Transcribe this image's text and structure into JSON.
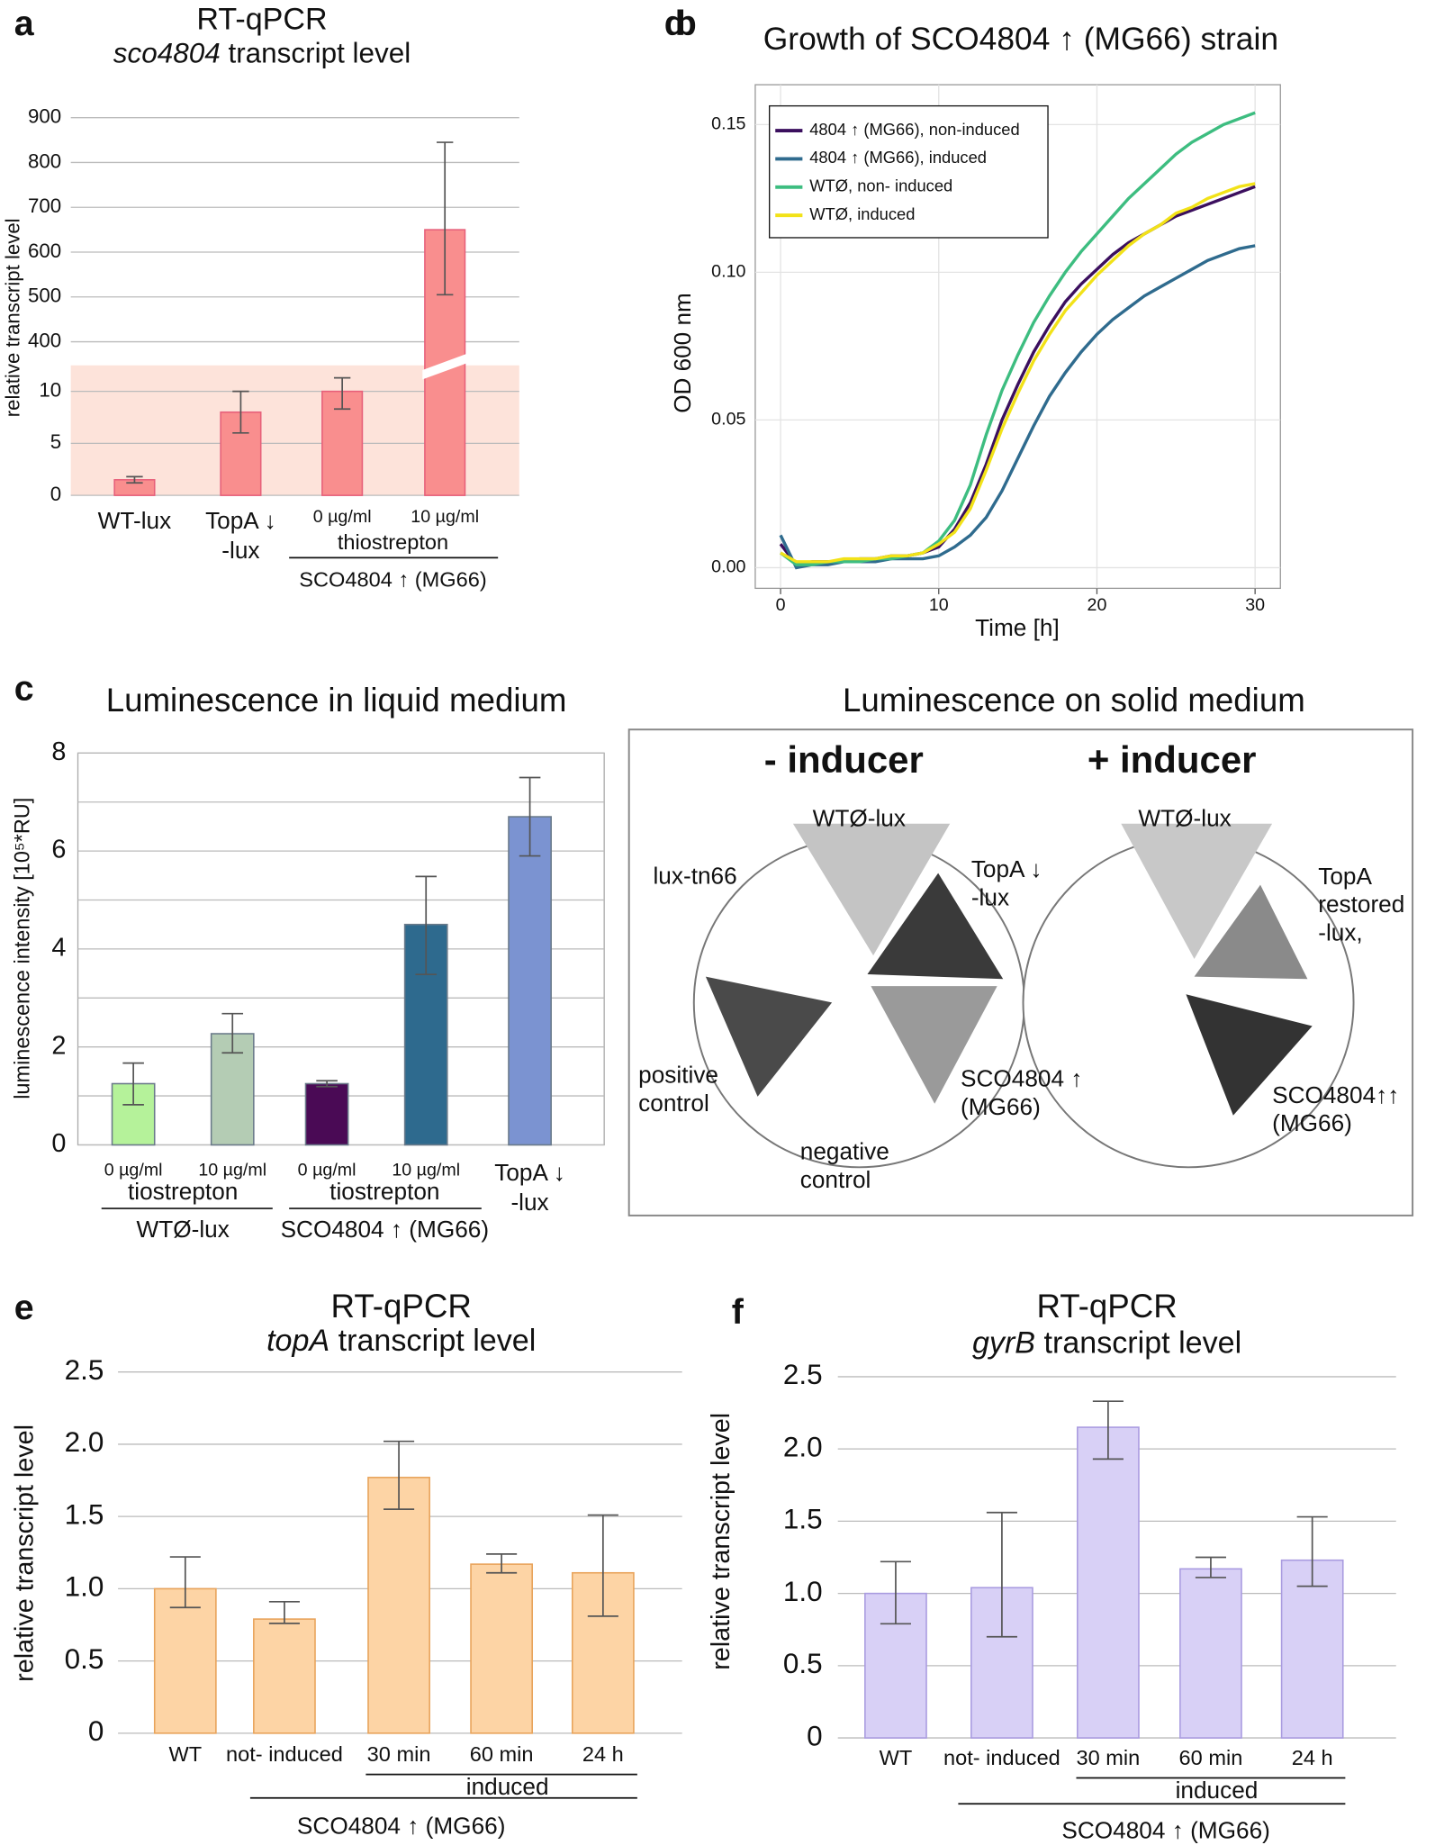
{
  "chart_data": [
    {
      "panel": "a",
      "type": "bar",
      "title": "RT-qPCR",
      "subtitle": "sco4804 transcript level",
      "y_label": "relative transcript level",
      "categories": [
        "WT-lux",
        "TopA ↓\n-lux",
        "0 µg/ml",
        "10 µg/ml"
      ],
      "group_labels": [
        "thiostrepton",
        "SCO4804 ↑ (MG66)"
      ],
      "values": [
        1.5,
        8,
        10,
        650
      ],
      "error_bars": [
        [
          1.2,
          1.8
        ],
        [
          6,
          10
        ],
        [
          8.3,
          11.3
        ],
        [
          505,
          845
        ]
      ],
      "color": "#f98e8e",
      "edge_color": "#e7607a",
      "shade_color": "#fde3da",
      "ylim": [
        0,
        900
      ],
      "y_break": [
        12.5,
        350
      ],
      "yticks": [
        0,
        5,
        10,
        400,
        500,
        600,
        700,
        800,
        900
      ],
      "grid": true
    },
    {
      "panel": "b",
      "type": "line",
      "title": "Growth of SCO4804 ↑ (MG66) strain",
      "x_label": "Time [h]",
      "y_label": "OD 600 nm",
      "x": [
        0,
        1,
        2,
        3,
        4,
        5,
        6,
        7,
        8,
        9,
        10,
        11,
        12,
        13,
        14,
        15,
        16,
        17,
        18,
        19,
        20,
        21,
        22,
        23,
        24,
        25,
        26,
        27,
        28,
        29,
        30
      ],
      "series": [
        {
          "name": "4804 ↑ (MG66), non-induced",
          "color": "#3b0f5e",
          "values": [
            0.008,
            0.001,
            0.002,
            0.002,
            0.002,
            0.003,
            0.003,
            0.004,
            0.004,
            0.005,
            0.007,
            0.013,
            0.022,
            0.035,
            0.05,
            0.062,
            0.073,
            0.082,
            0.09,
            0.096,
            0.101,
            0.106,
            0.11,
            0.113,
            0.116,
            0.119,
            0.121,
            0.123,
            0.125,
            0.127,
            0.129
          ]
        },
        {
          "name": "4804 ↑ (MG66), induced",
          "color": "#2f6b8e",
          "values": [
            0.011,
            0.0,
            0.001,
            0.001,
            0.002,
            0.002,
            0.002,
            0.003,
            0.003,
            0.003,
            0.004,
            0.007,
            0.011,
            0.017,
            0.026,
            0.037,
            0.048,
            0.058,
            0.066,
            0.073,
            0.079,
            0.084,
            0.088,
            0.092,
            0.095,
            0.098,
            0.101,
            0.104,
            0.106,
            0.108,
            0.109
          ]
        },
        {
          "name": "WTØ, non- induced",
          "color": "#3dbd80",
          "values": [
            0.005,
            0.001,
            0.001,
            0.002,
            0.002,
            0.002,
            0.003,
            0.003,
            0.004,
            0.005,
            0.009,
            0.016,
            0.028,
            0.045,
            0.06,
            0.072,
            0.083,
            0.092,
            0.1,
            0.107,
            0.113,
            0.119,
            0.125,
            0.13,
            0.135,
            0.14,
            0.144,
            0.147,
            0.15,
            0.152,
            0.154
          ]
        },
        {
          "name": "WTØ, induced",
          "color": "#f2e218",
          "values": [
            0.005,
            0.002,
            0.002,
            0.002,
            0.003,
            0.003,
            0.003,
            0.004,
            0.004,
            0.005,
            0.008,
            0.012,
            0.02,
            0.033,
            0.047,
            0.059,
            0.07,
            0.079,
            0.087,
            0.093,
            0.099,
            0.104,
            0.109,
            0.113,
            0.116,
            0.12,
            0.122,
            0.125,
            0.127,
            0.129,
            0.13
          ]
        }
      ],
      "xlim": [
        -1.6,
        31.6
      ],
      "xticks": [
        0,
        10,
        20,
        30
      ],
      "ylim": [
        -0.007,
        0.1635
      ],
      "yticks": [
        {
          "value": 0,
          "label": "0.00"
        },
        {
          "value": 0.05,
          "label": "0.05"
        },
        {
          "value": 0.1,
          "label": "0.10"
        },
        {
          "value": 0.15,
          "label": "0.15"
        }
      ],
      "grid": true,
      "legend": "upper left"
    },
    {
      "panel": "c",
      "type": "bar",
      "title": "Luminescence in liquid medium",
      "y_label": "luminescence intensity [10⁵*RU]",
      "categories": [
        "0 µg/ml",
        "10 µg/ml",
        "0 µg/ml",
        "10 µg/ml",
        "TopA ↓\n-lux"
      ],
      "group_labels": [
        "tiostrepton",
        "WTØ-lux",
        "tiostrepton",
        "SCO4804 ↑ (MG66)"
      ],
      "values": [
        1.25,
        2.27,
        1.25,
        4.5,
        6.7
      ],
      "error_bars": [
        [
          0.82,
          1.67
        ],
        [
          1.88,
          2.68
        ],
        [
          1.19,
          1.31
        ],
        [
          3.48,
          5.48
        ],
        [
          5.9,
          7.5
        ]
      ],
      "colors": [
        "#b5f29a",
        "#b4ccb4",
        "#4a0a55",
        "#2e6a8e",
        "#7b93d1"
      ],
      "edge_color": "#6a7a8a",
      "ylim": [
        0,
        8
      ],
      "yticks": [
        0,
        2,
        4,
        6,
        8
      ],
      "minor_yticks": [
        1,
        3,
        5,
        7
      ],
      "grid": true
    },
    {
      "panel": "e",
      "type": "bar",
      "title": "RT-qPCR",
      "subtitle": "topA transcript level",
      "y_label": "relative transcript level",
      "categories": [
        "WT",
        "not- induced",
        "30 min",
        "60 min",
        "24 h"
      ],
      "group_labels": [
        "induced",
        "SCO4804 ↑ (MG66)"
      ],
      "values": [
        1.0,
        0.79,
        1.77,
        1.17,
        1.11
      ],
      "error_bars": [
        [
          0.87,
          1.22
        ],
        [
          0.76,
          0.91
        ],
        [
          1.55,
          2.02
        ],
        [
          1.11,
          1.24
        ],
        [
          0.81,
          1.51
        ]
      ],
      "color": "#fdd4a5",
      "edge_color": "#e8a35a",
      "ylim": [
        0,
        2.5
      ],
      "yticks": [
        0,
        0.5,
        {
          "value": 1,
          "label": "1.0"
        },
        1.5,
        {
          "value": 2,
          "label": "2.0"
        },
        2.5
      ],
      "grid": true
    },
    {
      "panel": "f",
      "type": "bar",
      "title": "RT-qPCR",
      "subtitle": "gyrB transcript level",
      "y_label": "relative transcript level",
      "categories": [
        "WT",
        "not- induced",
        "30 min",
        "60 min",
        "24 h"
      ],
      "group_labels": [
        "induced",
        "SCO4804 ↑ (MG66)"
      ],
      "values": [
        1.0,
        1.04,
        2.15,
        1.17,
        1.23
      ],
      "error_bars": [
        [
          0.79,
          1.22
        ],
        [
          0.7,
          1.56
        ],
        [
          1.93,
          2.33
        ],
        [
          1.11,
          1.25
        ],
        [
          1.05,
          1.53
        ]
      ],
      "color": "#d8d0f6",
      "edge_color": "#a99be0",
      "ylim": [
        0,
        2.5
      ],
      "yticks": [
        0,
        0.5,
        {
          "value": 1,
          "label": "1.0"
        },
        1.5,
        {
          "value": 2,
          "label": "2.0"
        },
        2.5
      ],
      "grid": true
    }
  ],
  "panel_d": {
    "panel": "d",
    "title": "Luminescence on solid medium",
    "plates": [
      {
        "condition": "- inducer",
        "labels": [
          "WTØ-lux",
          "lux-tn66",
          "TopA ↓\n-lux",
          "positive\ncontrol",
          "negative\ncontrol",
          "SCO4804 ↑\n(MG66)"
        ]
      },
      {
        "condition": "+ inducer",
        "labels": [
          "WTØ-lux",
          "TopA\nrestored\n-lux,",
          "SCO4804↑↑\n(MG66)"
        ]
      }
    ]
  }
}
